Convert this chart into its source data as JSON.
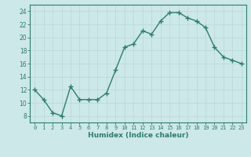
{
  "x": [
    0,
    1,
    2,
    3,
    4,
    5,
    6,
    7,
    8,
    9,
    10,
    11,
    12,
    13,
    14,
    15,
    16,
    17,
    18,
    19,
    20,
    21,
    22,
    23
  ],
  "y": [
    12,
    10.5,
    8.5,
    8,
    12.5,
    10.5,
    10.5,
    10.5,
    11.5,
    15,
    18.5,
    19,
    21,
    20.5,
    22.5,
    23.8,
    23.8,
    23,
    22.5,
    21.5,
    18.5,
    17,
    16.5,
    16
  ],
  "xlabel": "Humidex (Indice chaleur)",
  "line_color": "#2e7d6e",
  "marker": "+",
  "bg_color": "#cce8e8",
  "grid_color": "#b8d8d8",
  "ylim": [
    7,
    25
  ],
  "xlim": [
    -0.5,
    23.5
  ],
  "yticks": [
    8,
    10,
    12,
    14,
    16,
    18,
    20,
    22,
    24
  ],
  "xticks": [
    0,
    1,
    2,
    3,
    4,
    5,
    6,
    7,
    8,
    9,
    10,
    11,
    12,
    13,
    14,
    15,
    16,
    17,
    18,
    19,
    20,
    21,
    22,
    23
  ],
  "xlabel_fontsize": 6.5,
  "tick_fontsize": 5.0,
  "ytick_fontsize": 5.5
}
